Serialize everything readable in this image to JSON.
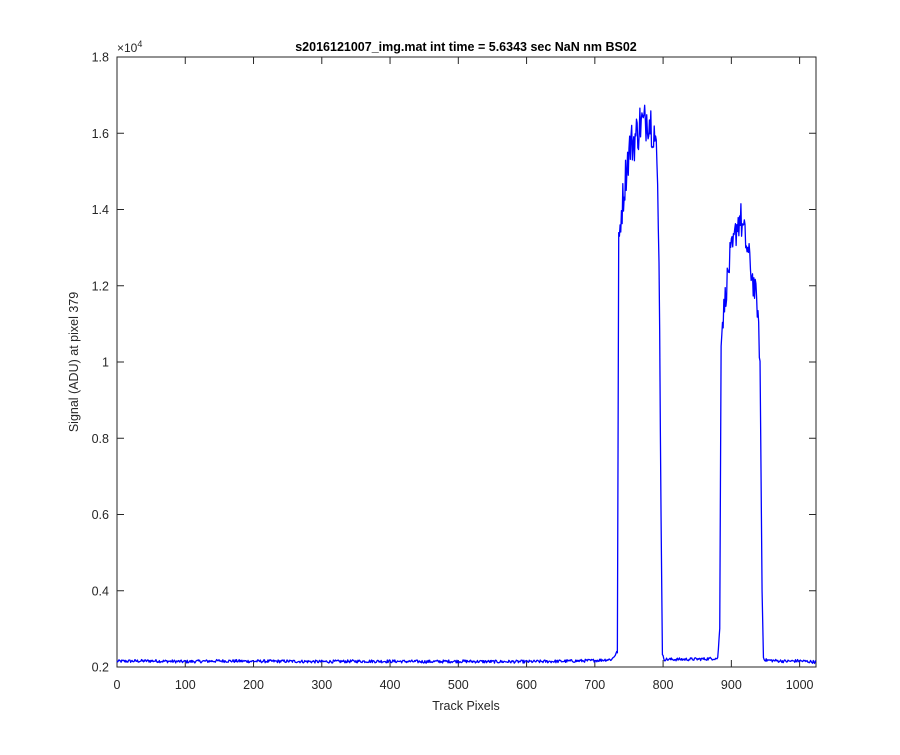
{
  "chart_data": {
    "type": "line",
    "title": "s2016121007_img.mat int time = 5.6343 sec  NaN nm BS02",
    "xlabel": "Track Pixels",
    "ylabel": "Signal (ADU) at pixel 379",
    "y_exponent_label": "×10",
    "y_exponent_power": "4",
    "xlim": [
      0,
      1024
    ],
    "ylim": [
      0.2,
      1.8
    ],
    "x_ticks": [
      0,
      100,
      200,
      300,
      400,
      500,
      600,
      700,
      800,
      900,
      1000
    ],
    "x_tick_labels": [
      "0",
      "100",
      "200",
      "300",
      "400",
      "500",
      "600",
      "700",
      "800",
      "900",
      "1000"
    ],
    "y_ticks": [
      0.2,
      0.4,
      0.6,
      0.8,
      1.0,
      1.2,
      1.4,
      1.6,
      1.8
    ],
    "y_tick_labels": [
      "0.2",
      "0.4",
      "0.6",
      "0.8",
      "1",
      "1.2",
      "1.4",
      "1.6",
      "1.8"
    ],
    "grid": false,
    "line_color": "#0000ff",
    "axis_color": "#262626",
    "series": [
      {
        "x": [
          0,
          50,
          100,
          150,
          200,
          250,
          300,
          350,
          400,
          450,
          500,
          550,
          600,
          650,
          700,
          725,
          733,
          735,
          738,
          742,
          747,
          752,
          757,
          762,
          767,
          772,
          777,
          782,
          787,
          791,
          794,
          797,
          799,
          802,
          830,
          860,
          880,
          883,
          885,
          888,
          893,
          898,
          903,
          908,
          913,
          918,
          923,
          928,
          933,
          938,
          942,
          945,
          947,
          950,
          980,
          1000,
          1024
        ],
        "y": [
          0.215,
          0.216,
          0.214,
          0.216,
          0.215,
          0.215,
          0.214,
          0.215,
          0.215,
          0.214,
          0.215,
          0.214,
          0.214,
          0.215,
          0.217,
          0.22,
          0.24,
          1.3,
          1.38,
          1.44,
          1.52,
          1.57,
          1.58,
          1.6,
          1.63,
          1.62,
          1.65,
          1.63,
          1.61,
          1.52,
          1.3,
          0.6,
          0.23,
          0.22,
          0.22,
          0.221,
          0.223,
          0.3,
          1.07,
          1.12,
          1.2,
          1.27,
          1.3,
          1.36,
          1.38,
          1.34,
          1.3,
          1.25,
          1.2,
          1.15,
          1.0,
          0.4,
          0.225,
          0.218,
          0.215,
          0.216,
          0.213
        ]
      }
    ]
  }
}
